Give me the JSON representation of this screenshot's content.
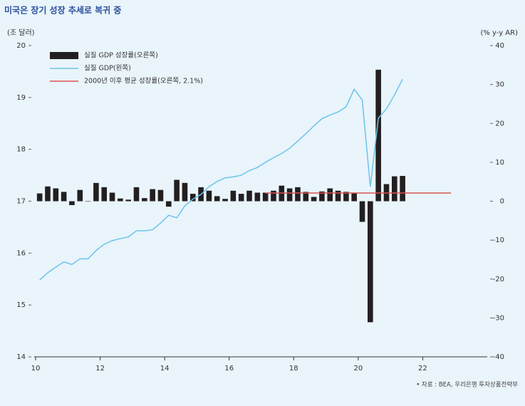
{
  "chart_data": {
    "type": "combo",
    "title": "미국은 장기 성장 추세로 복귀 중",
    "y_label": "(조 달러)",
    "y2_label": "(% y-y AR)",
    "source": "• 자료 : BEA, 우리은행 투자상품전략부",
    "xlim": [
      10,
      24
    ],
    "xticks": [
      10,
      12,
      14,
      16,
      18,
      20,
      22
    ],
    "ylim": [
      14,
      20
    ],
    "yticks": [
      14,
      15,
      16,
      17,
      18,
      19,
      20
    ],
    "y2lim": [
      -40,
      40
    ],
    "y2ticks": [
      -40,
      -30,
      -20,
      -10,
      0,
      10,
      20,
      30,
      40
    ],
    "series": [
      {
        "name": "실질 GDP 성장률(오른쪽)",
        "type": "bar",
        "axis": "y2",
        "color": "#231f20",
        "x": [
          10.125,
          10.375,
          10.625,
          10.875,
          11.125,
          11.375,
          11.625,
          11.875,
          12.125,
          12.375,
          12.625,
          12.875,
          13.125,
          13.375,
          13.625,
          13.875,
          14.125,
          14.375,
          14.625,
          14.875,
          15.125,
          15.375,
          15.625,
          15.875,
          16.125,
          16.375,
          16.625,
          16.875,
          17.125,
          17.375,
          17.625,
          17.875,
          18.125,
          18.375,
          18.625,
          18.875,
          19.125,
          19.375,
          19.625,
          19.875,
          20.125,
          20.375,
          20.625,
          20.875,
          21.125,
          21.375
        ],
        "values": [
          2.0,
          3.8,
          3.3,
          2.4,
          -1.0,
          2.9,
          -0.1,
          4.7,
          3.6,
          2.2,
          0.7,
          0.4,
          3.6,
          0.8,
          3.1,
          2.9,
          -1.4,
          5.5,
          4.7,
          1.9,
          3.6,
          2.7,
          1.3,
          0.6,
          2.7,
          1.9,
          2.7,
          2.2,
          2.2,
          2.7,
          4.0,
          3.3,
          3.6,
          2.4,
          1.1,
          2.5,
          3.3,
          2.7,
          2.4,
          2.2,
          -5.3,
          -31.1,
          33.8,
          4.4,
          6.4,
          6.5
        ]
      },
      {
        "name": "실질 GDP(왼쪽)",
        "type": "line",
        "axis": "y",
        "color": "#6cc4ea",
        "x": [
          10.125,
          10.375,
          10.625,
          10.875,
          11.125,
          11.375,
          11.625,
          11.875,
          12.125,
          12.375,
          12.625,
          12.875,
          13.125,
          13.375,
          13.625,
          13.875,
          14.125,
          14.375,
          14.625,
          14.875,
          15.125,
          15.375,
          15.625,
          15.875,
          16.125,
          16.375,
          16.625,
          16.875,
          17.125,
          17.375,
          17.625,
          17.875,
          18.125,
          18.375,
          18.625,
          18.875,
          19.125,
          19.375,
          19.625,
          19.875,
          20.125,
          20.375,
          20.625,
          20.875,
          21.125,
          21.375
        ],
        "values": [
          15.48,
          15.62,
          15.73,
          15.83,
          15.78,
          15.89,
          15.89,
          16.05,
          16.17,
          16.24,
          16.28,
          16.31,
          16.43,
          16.43,
          16.45,
          16.58,
          16.73,
          16.68,
          16.91,
          17.04,
          17.13,
          17.28,
          17.38,
          17.45,
          17.47,
          17.5,
          17.59,
          17.65,
          17.75,
          17.84,
          17.92,
          18.02,
          18.16,
          18.3,
          18.45,
          18.59,
          18.66,
          18.72,
          18.82,
          19.16,
          18.95,
          17.28,
          18.6,
          18.78,
          19.05,
          19.35
        ]
      },
      {
        "name": "2000년 이후 평균 성장률(오른쪽, 2.1%)",
        "type": "line",
        "axis": "y2",
        "color": "#d9534f",
        "x": [
          17.125,
          22.875
        ],
        "values": [
          2.1,
          2.1
        ]
      }
    ]
  }
}
